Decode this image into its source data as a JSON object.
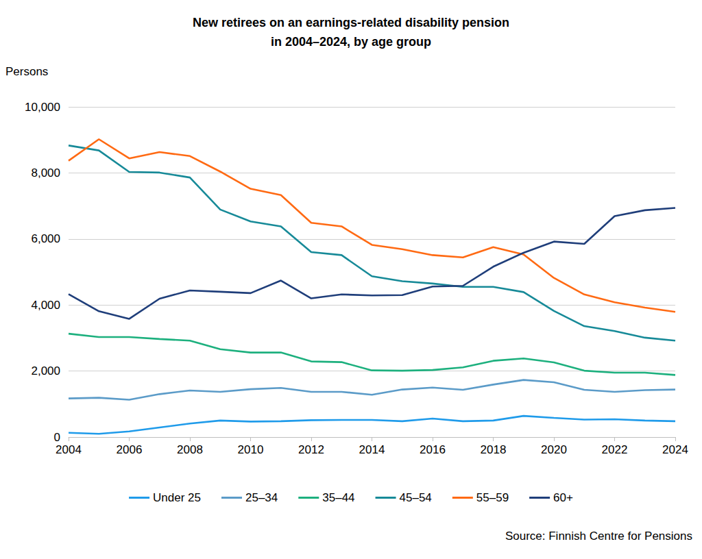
{
  "chart_data": {
    "type": "line",
    "title": "New retirees on an earnings-related disability pension\nin 2004–2024, by age group",
    "y_label": "Persons",
    "source": "Source: Finnish Centre for Pensions",
    "x": [
      2004,
      2005,
      2006,
      2007,
      2008,
      2009,
      2010,
      2011,
      2012,
      2013,
      2014,
      2015,
      2016,
      2017,
      2018,
      2019,
      2020,
      2021,
      2022,
      2023,
      2024
    ],
    "xlim": [
      2004,
      2024
    ],
    "xticks": [
      2004,
      2006,
      2008,
      2010,
      2012,
      2014,
      2016,
      2018,
      2020,
      2022,
      2024
    ],
    "ylim": [
      0,
      10000
    ],
    "yticks": [
      0,
      {
        "value": 2000,
        "label": "2,000"
      },
      {
        "value": 4000,
        "label": "4,000"
      },
      {
        "value": 6000,
        "label": "6,000"
      },
      {
        "value": 8000,
        "label": "8,000"
      },
      {
        "value": 10000,
        "label": "10,000"
      }
    ],
    "grid": true,
    "legend": "bottom",
    "series": [
      {
        "name": "Under 25",
        "color": "#1f9bea",
        "values": [
          130,
          100,
          170,
          290,
          410,
          500,
          470,
          480,
          510,
          520,
          520,
          480,
          560,
          480,
          500,
          640,
          580,
          530,
          540,
          500,
          480
        ]
      },
      {
        "name": "25–34",
        "color": "#5b9bc8",
        "values": [
          1170,
          1190,
          1130,
          1300,
          1410,
          1370,
          1450,
          1490,
          1370,
          1370,
          1280,
          1440,
          1500,
          1430,
          1590,
          1730,
          1660,
          1430,
          1370,
          1420,
          1440
        ]
      },
      {
        "name": "35–44",
        "color": "#1db07e",
        "values": [
          3130,
          3030,
          3030,
          2970,
          2920,
          2660,
          2560,
          2560,
          2290,
          2270,
          2020,
          2010,
          2030,
          2110,
          2310,
          2380,
          2260,
          2010,
          1950,
          1950,
          1880
        ]
      },
      {
        "name": "45–54",
        "color": "#178a98",
        "values": [
          8830,
          8680,
          8030,
          8010,
          7860,
          6890,
          6530,
          6380,
          5600,
          5510,
          4870,
          4720,
          4650,
          4550,
          4550,
          4390,
          3820,
          3360,
          3210,
          3010,
          2920
        ]
      },
      {
        "name": "55–59",
        "color": "#ff6a13",
        "values": [
          8370,
          9020,
          8440,
          8630,
          8510,
          8040,
          7520,
          7330,
          6490,
          6380,
          5820,
          5690,
          5510,
          5440,
          5750,
          5530,
          4820,
          4320,
          4080,
          3920,
          3790
        ]
      },
      {
        "name": "60+",
        "color": "#1f3e7a",
        "values": [
          4330,
          3810,
          3580,
          4190,
          4440,
          4400,
          4360,
          4740,
          4200,
          4320,
          4290,
          4300,
          4560,
          4580,
          5160,
          5580,
          5920,
          5850,
          6690,
          6870,
          6940
        ]
      }
    ]
  }
}
